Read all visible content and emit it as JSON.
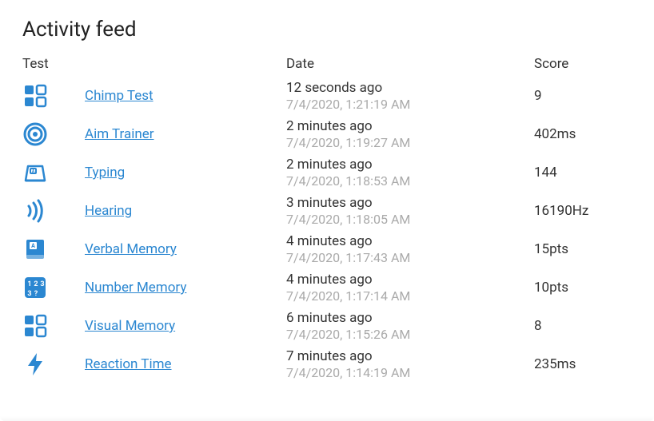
{
  "title": "Activity feed",
  "columns": {
    "test": "Test",
    "date": "Date",
    "score": "Score"
  },
  "colors": {
    "accent": "#2b87d1",
    "text": "#333333",
    "muted": "#aaaaaa",
    "bg": "#ffffff"
  },
  "activities": [
    {
      "icon": "squares",
      "name": "Chimp Test",
      "relative": "12 seconds ago",
      "absolute": "7/4/2020, 1:21:19 AM",
      "score": "9"
    },
    {
      "icon": "target",
      "name": "Aim Trainer",
      "relative": "2 minutes ago",
      "absolute": "7/4/2020, 1:19:27 AM",
      "score": "402ms"
    },
    {
      "icon": "typing",
      "name": "Typing",
      "relative": "2 minutes ago",
      "absolute": "7/4/2020, 1:18:53 AM",
      "score": "144"
    },
    {
      "icon": "hearing",
      "name": "Hearing",
      "relative": "3 minutes ago",
      "absolute": "7/4/2020, 1:18:05 AM",
      "score": "16190Hz"
    },
    {
      "icon": "book",
      "name": "Verbal Memory",
      "relative": "4 minutes ago",
      "absolute": "7/4/2020, 1:17:43 AM",
      "score": "15pts"
    },
    {
      "icon": "numbers",
      "name": "Number Memory",
      "relative": "4 minutes ago",
      "absolute": "7/4/2020, 1:17:14 AM",
      "score": "10pts"
    },
    {
      "icon": "squares",
      "name": "Visual Memory",
      "relative": "6 minutes ago",
      "absolute": "7/4/2020, 1:15:26 AM",
      "score": "8"
    },
    {
      "icon": "bolt",
      "name": "Reaction Time",
      "relative": "7 minutes ago",
      "absolute": "7/4/2020, 1:14:19 AM",
      "score": "235ms"
    }
  ]
}
